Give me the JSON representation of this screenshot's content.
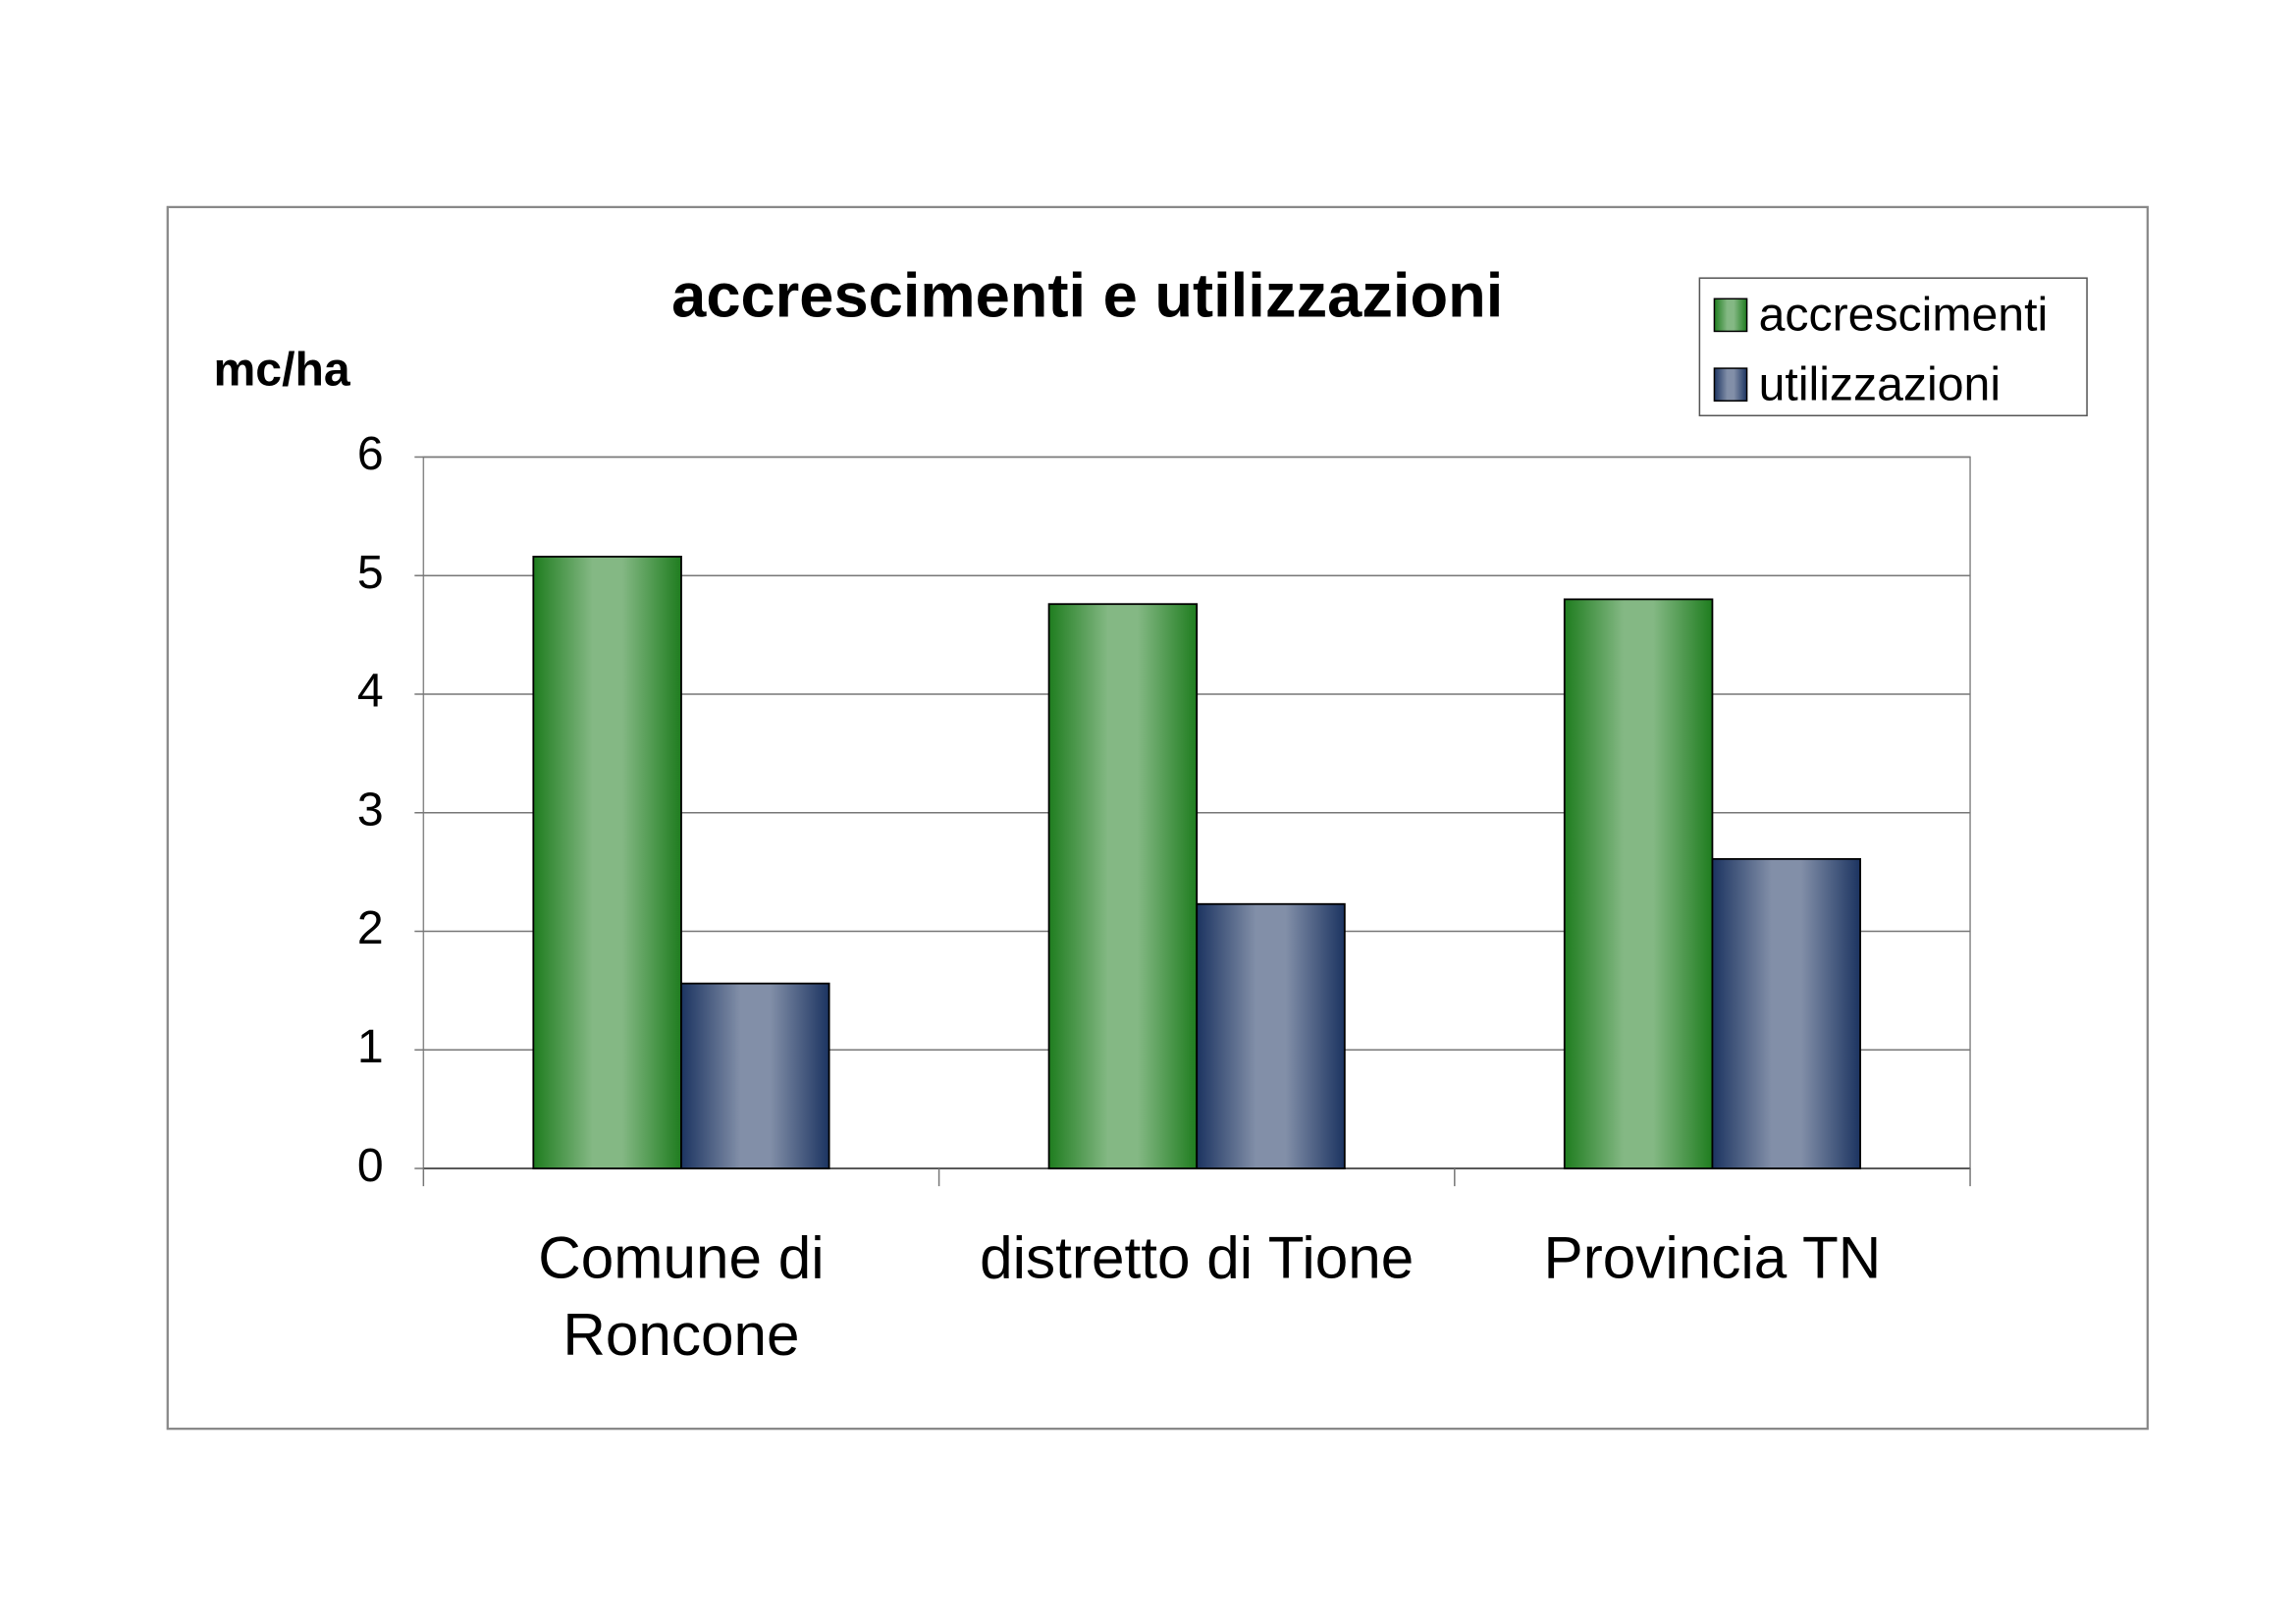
{
  "chart_data": {
    "type": "bar",
    "title": "accrescimenti e utilizzazioni",
    "y_label": "mc/ha",
    "categories": [
      "Comune di Roncone",
      "distretto di Tione",
      "Provincia TN"
    ],
    "series": [
      {
        "name": "accrescimenti",
        "color": "#1f7d1f",
        "values": [
          5.16,
          4.76,
          4.8
        ]
      },
      {
        "name": "utilizzazioni",
        "color": "#1c3461",
        "values": [
          1.56,
          2.23,
          2.61
        ]
      }
    ],
    "ylim": [
      0,
      6
    ],
    "yticks": [
      0,
      1,
      2,
      3,
      4,
      5,
      6
    ],
    "grid": true,
    "legend": "top-right"
  }
}
